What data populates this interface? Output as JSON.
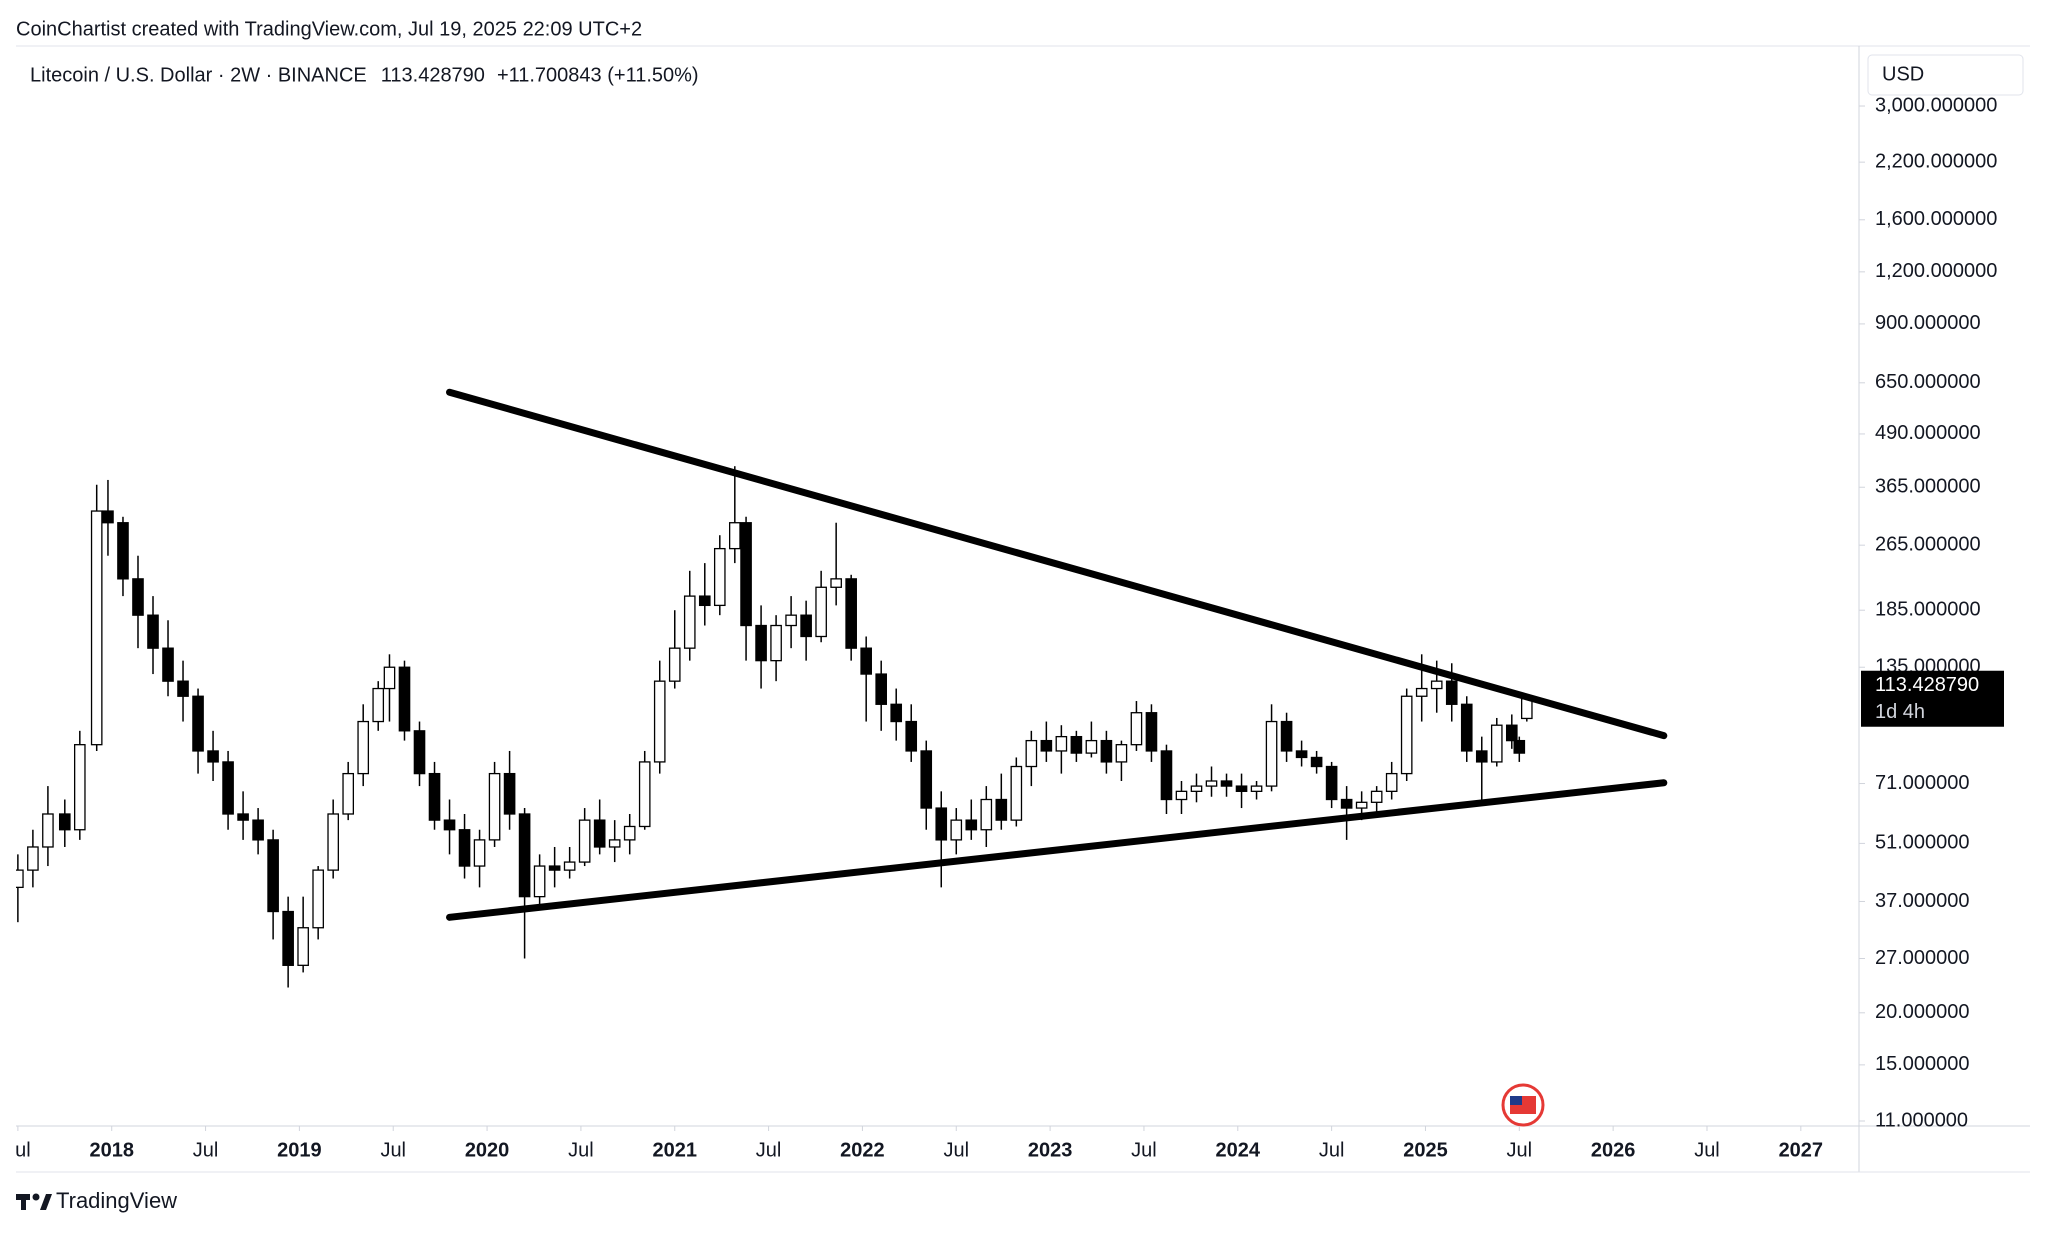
{
  "header": "CoinChartist created with TradingView.com, Jul 19, 2025 22:09 UTC+2",
  "footer": "TradingView",
  "chart_data": {
    "type": "candlestick",
    "legend": {
      "symbol": "Litecoin / U.S. Dollar · 2W · BINANCE",
      "price": "113.428790",
      "change": "+11.700843 (+11.50%)"
    },
    "currency": "USD",
    "log_scale": true,
    "grid": false,
    "up_color": "#ffffff",
    "down_color": "#000000",
    "last_price": {
      "value": 113.42879,
      "label": "113.428790",
      "countdown": "1d 4h"
    },
    "x": [
      2017.5,
      2017.58,
      2017.66,
      2017.75,
      2017.83,
      2017.92,
      2017.98,
      2018.06,
      2018.14,
      2018.22,
      2018.3,
      2018.38,
      2018.46,
      2018.54,
      2018.62,
      2018.7,
      2018.78,
      2018.86,
      2018.94,
      2019.02,
      2019.1,
      2019.18,
      2019.26,
      2019.34,
      2019.42,
      2019.48,
      2019.56,
      2019.64,
      2019.72,
      2019.8,
      2019.88,
      2019.96,
      2020.04,
      2020.12,
      2020.2,
      2020.28,
      2020.36,
      2020.44,
      2020.52,
      2020.6,
      2020.68,
      2020.76,
      2020.84,
      2020.92,
      2021.0,
      2021.08,
      2021.16,
      2021.24,
      2021.32,
      2021.38,
      2021.46,
      2021.54,
      2021.62,
      2021.7,
      2021.78,
      2021.86,
      2021.94,
      2022.02,
      2022.1,
      2022.18,
      2022.26,
      2022.34,
      2022.42,
      2022.5,
      2022.58,
      2022.66,
      2022.74,
      2022.82,
      2022.9,
      2022.98,
      2023.06,
      2023.14,
      2023.22,
      2023.3,
      2023.38,
      2023.46,
      2023.54,
      2023.62,
      2023.7,
      2023.78,
      2023.86,
      2023.94,
      2024.02,
      2024.1,
      2024.18,
      2024.26,
      2024.34,
      2024.42,
      2024.5,
      2024.58,
      2024.66,
      2024.74,
      2024.82,
      2024.9,
      2024.98,
      2025.06,
      2025.14,
      2025.22,
      2025.3,
      2025.38,
      2025.46,
      2025.5,
      2025.54
    ],
    "open": [
      40,
      44,
      50,
      60,
      55,
      88,
      320,
      300,
      220,
      180,
      150,
      125,
      115,
      85,
      80,
      60,
      58,
      52,
      35,
      26,
      32,
      44,
      60,
      75,
      100,
      120,
      135,
      95,
      75,
      58,
      55,
      45,
      52,
      75,
      60,
      38,
      45,
      44,
      46,
      58,
      50,
      52,
      56,
      80,
      125,
      150,
      200,
      190,
      260,
      300,
      170,
      140,
      170,
      180,
      160,
      210,
      220,
      150,
      130,
      110,
      100,
      85,
      62,
      52,
      58,
      55,
      65,
      58,
      78,
      90,
      85,
      92,
      84,
      90,
      80,
      88,
      105,
      85,
      65,
      68,
      70,
      72,
      70,
      68,
      70,
      100,
      85,
      82,
      78,
      65,
      62,
      64,
      68,
      75,
      115,
      120,
      125,
      110,
      85,
      80,
      98,
      90,
      101.727947
    ],
    "high": [
      48,
      55,
      70,
      65,
      95,
      370,
      380,
      310,
      250,
      200,
      175,
      140,
      120,
      95,
      85,
      68,
      62,
      55,
      38,
      38,
      45,
      65,
      80,
      110,
      125,
      145,
      140,
      100,
      80,
      65,
      60,
      55,
      80,
      85,
      62,
      48,
      50,
      50,
      62,
      65,
      58,
      60,
      85,
      140,
      185,
      230,
      240,
      280,
      410,
      310,
      190,
      180,
      200,
      195,
      230,
      300,
      225,
      160,
      140,
      120,
      110,
      90,
      68,
      62,
      65,
      70,
      75,
      82,
      95,
      100,
      98,
      95,
      100,
      95,
      90,
      112,
      110,
      88,
      72,
      75,
      78,
      75,
      75,
      72,
      110,
      105,
      90,
      85,
      80,
      70,
      68,
      70,
      80,
      120,
      145,
      140,
      138,
      115,
      92,
      102,
      104,
      92,
      115
    ],
    "low": [
      33,
      40,
      45,
      50,
      52,
      85,
      250,
      200,
      150,
      130,
      115,
      100,
      75,
      72,
      55,
      52,
      48,
      30,
      23,
      25,
      30,
      42,
      58,
      70,
      95,
      100,
      90,
      70,
      55,
      48,
      42,
      40,
      50,
      55,
      27,
      36,
      40,
      42,
      45,
      48,
      46,
      48,
      55,
      75,
      120,
      140,
      170,
      180,
      240,
      140,
      120,
      125,
      150,
      140,
      155,
      190,
      140,
      100,
      95,
      90,
      80,
      55,
      40,
      48,
      52,
      50,
      55,
      56,
      70,
      80,
      75,
      80,
      82,
      75,
      72,
      85,
      80,
      60,
      60,
      64,
      66,
      66,
      62,
      65,
      68,
      80,
      78,
      75,
      62,
      52,
      58,
      60,
      65,
      72,
      100,
      105,
      100,
      80,
      65,
      78,
      86,
      80,
      100
    ],
    "close": [
      44,
      50,
      60,
      55,
      88,
      320,
      300,
      220,
      180,
      150,
      125,
      115,
      85,
      80,
      60,
      58,
      52,
      35,
      26,
      32,
      44,
      60,
      75,
      100,
      120,
      135,
      95,
      75,
      58,
      55,
      45,
      52,
      75,
      60,
      38,
      45,
      44,
      46,
      58,
      50,
      52,
      56,
      80,
      125,
      150,
      200,
      190,
      260,
      300,
      170,
      140,
      170,
      180,
      160,
      210,
      220,
      150,
      130,
      110,
      100,
      85,
      62,
      52,
      58,
      55,
      65,
      58,
      78,
      90,
      85,
      92,
      84,
      90,
      80,
      88,
      105,
      85,
      65,
      68,
      70,
      72,
      70,
      68,
      70,
      100,
      85,
      82,
      78,
      65,
      62,
      64,
      68,
      75,
      115,
      120,
      125,
      110,
      85,
      80,
      98,
      90,
      84,
      113.42879
    ],
    "xlim": [
      2017.49,
      2027.31
    ],
    "xticks": [
      {
        "value": 2017.5,
        "label": "Jul"
      },
      2018,
      {
        "value": 2018.5,
        "label": "Jul"
      },
      2019,
      {
        "value": 2019.5,
        "label": "Jul"
      },
      2020,
      {
        "value": 2020.5,
        "label": "Jul"
      },
      2021,
      {
        "value": 2021.5,
        "label": "Jul"
      },
      2022,
      {
        "value": 2022.5,
        "label": "Jul"
      },
      2023,
      {
        "value": 2023.5,
        "label": "Jul"
      },
      2024,
      {
        "value": 2024.5,
        "label": "Jul"
      },
      2025,
      {
        "value": 2025.5,
        "label": "Jul"
      },
      2026,
      {
        "value": 2026.5,
        "label": "Jul"
      },
      2027
    ],
    "ylim": [
      10.7,
      4180
    ],
    "yticks": [
      {
        "value": 11,
        "label": "11.000000"
      },
      {
        "value": 15,
        "label": "15.000000"
      },
      {
        "value": 20,
        "label": "20.000000"
      },
      {
        "value": 27,
        "label": "27.000000"
      },
      {
        "value": 37,
        "label": "37.000000"
      },
      {
        "value": 51,
        "label": "51.000000"
      },
      {
        "value": 71,
        "label": "71.000000"
      },
      {
        "value": 135,
        "label": "135.000000"
      },
      {
        "value": 185,
        "label": "185.000000"
      },
      {
        "value": 265,
        "label": "265.000000"
      },
      {
        "value": 365,
        "label": "365.000000"
      },
      {
        "value": 490,
        "label": "490.000000"
      },
      {
        "value": 650,
        "label": "650.000000"
      },
      {
        "value": 900,
        "label": "900.000000"
      },
      {
        "value": 1200,
        "label": "1,200.000000"
      },
      {
        "value": 1600,
        "label": "1,600.000000"
      },
      {
        "value": 2200,
        "label": "2,200.000000"
      },
      {
        "value": 3000,
        "label": "3,000.000000"
      }
    ],
    "trendlines": [
      {
        "x": [
          2019.8,
          2026.27
        ],
        "y": [
          617,
          92.5
        ]
      },
      {
        "x": [
          2019.8,
          2026.27
        ],
        "y": [
          33.9,
          71.3
        ]
      }
    ]
  }
}
